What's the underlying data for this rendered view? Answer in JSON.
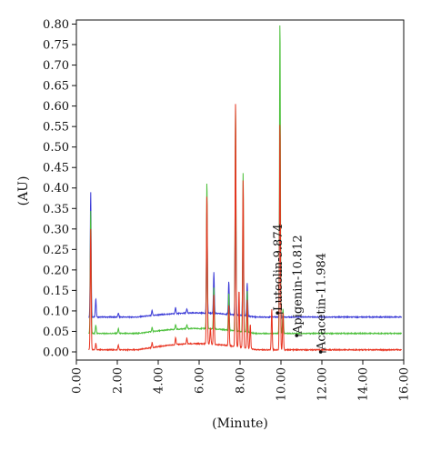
{
  "chart_data": {
    "type": "line",
    "title": "",
    "xlabel": "(Minute)",
    "ylabel": "(AU)",
    "xlim": [
      0,
      16
    ],
    "ylim": [
      -0.02,
      0.81
    ],
    "x_ticks": [
      "0.00",
      "2.00",
      "4.00",
      "6.00",
      "8.00",
      "10.00",
      "12.00",
      "14.00",
      "16.00"
    ],
    "y_ticks": [
      "0.00",
      "0.05",
      "0.10",
      "0.15",
      "0.20",
      "0.25",
      "0.30",
      "0.35",
      "0.40",
      "0.45",
      "0.50",
      "0.55",
      "0.60",
      "0.65",
      "0.70",
      "0.75",
      "0.80"
    ],
    "grid": false,
    "legend": "none",
    "series": [
      {
        "color": "#e8321f",
        "baseline": 0.005,
        "drift": 0.015,
        "peaks": [
          [
            0.7,
            0.295
          ],
          [
            0.95,
            0.015
          ],
          [
            2.05,
            0.012
          ],
          [
            3.7,
            0.012
          ],
          [
            4.85,
            0.018
          ],
          [
            5.4,
            0.014
          ],
          [
            6.38,
            0.365
          ],
          [
            6.55,
            0.04
          ],
          [
            6.72,
            0.12
          ],
          [
            7.45,
            0.1
          ],
          [
            7.78,
            0.595
          ],
          [
            7.95,
            0.14
          ],
          [
            8.15,
            0.41
          ],
          [
            8.35,
            0.12
          ],
          [
            8.5,
            0.06
          ],
          [
            9.55,
            0.1
          ],
          [
            9.95,
            0.56
          ],
          [
            10.1,
            0.09
          ]
        ]
      },
      {
        "color": "#4bbf3a",
        "baseline": 0.045,
        "drift": 0.012,
        "peaks": [
          [
            0.7,
            0.3
          ],
          [
            0.95,
            0.02
          ],
          [
            2.05,
            0.012
          ],
          [
            3.7,
            0.01
          ],
          [
            4.85,
            0.012
          ],
          [
            5.4,
            0.01
          ],
          [
            6.38,
            0.36
          ],
          [
            6.72,
            0.1
          ],
          [
            7.45,
            0.09
          ],
          [
            7.78,
            0.555
          ],
          [
            8.15,
            0.39
          ],
          [
            8.35,
            0.1
          ],
          [
            9.95,
            0.765
          ],
          [
            10.1,
            0.06
          ]
        ]
      },
      {
        "color": "#3a3ad6",
        "baseline": 0.085,
        "drift": 0.01,
        "peaks": [
          [
            0.7,
            0.305
          ],
          [
            0.95,
            0.045
          ],
          [
            2.05,
            0.01
          ],
          [
            3.7,
            0.012
          ],
          [
            4.85,
            0.015
          ],
          [
            5.4,
            0.01
          ],
          [
            6.38,
            0.25
          ],
          [
            6.72,
            0.1
          ],
          [
            7.45,
            0.08
          ],
          [
            7.78,
            0.33
          ],
          [
            8.15,
            0.21
          ],
          [
            8.35,
            0.08
          ],
          [
            9.95,
            0.4
          ]
        ]
      }
    ],
    "annotations": [
      {
        "label": "Luteolin-9.874",
        "x": 9.874,
        "y": 0.095
      },
      {
        "label": "Apigenin-10.812",
        "x": 10.812,
        "y": 0.04
      },
      {
        "label": "Acacetin-11.984",
        "x": 11.984,
        "y": 0.0
      }
    ]
  }
}
